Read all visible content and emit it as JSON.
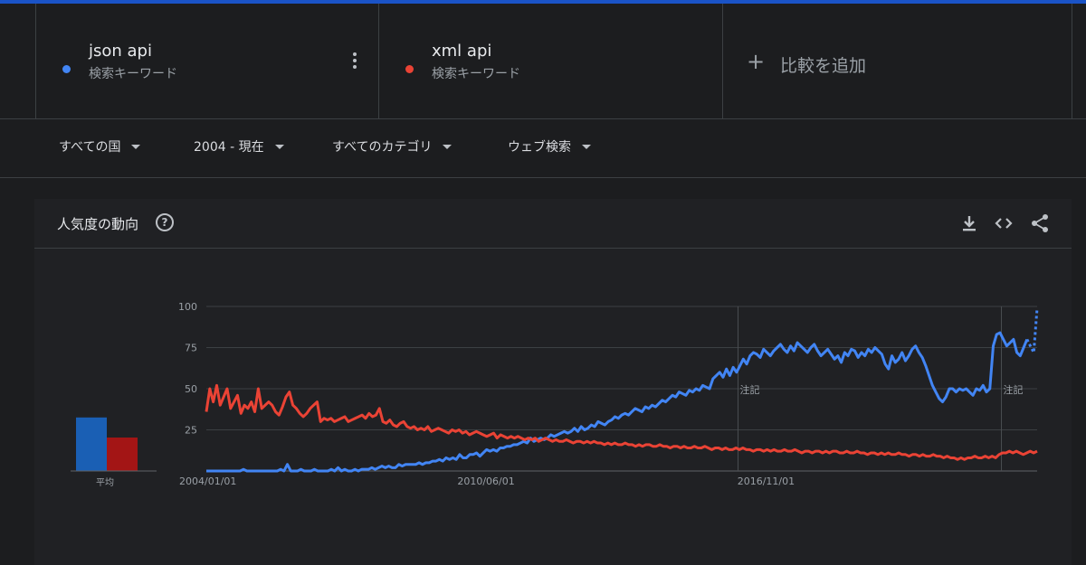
{
  "terms": [
    {
      "name": "json api",
      "type": "検索キーワード",
      "color": "#4285f4"
    },
    {
      "name": "xml api",
      "type": "検索キーワード",
      "color": "#ea4335"
    }
  ],
  "add_compare": "比較を追加",
  "filters": {
    "region": "すべての国",
    "period": "2004 - 現在",
    "category": "すべてのカテゴリ",
    "search_type": "ウェブ検索"
  },
  "panel": {
    "title": "人気度の動向",
    "icons": [
      "download-icon",
      "embed-icon",
      "share-icon"
    ],
    "avg_label": "平均"
  },
  "chart_data": {
    "type": "line",
    "x_tick_labels": [
      "2004/01/01",
      "2010/06/01",
      "2016/11/01"
    ],
    "y_ticks": [
      25,
      50,
      75,
      100
    ],
    "ylim": [
      0,
      100
    ],
    "annotations": [
      "注記",
      "注記"
    ],
    "series": [
      {
        "name": "json api",
        "color": "#4285f4",
        "values": [
          0,
          0,
          0,
          0,
          0,
          0,
          0,
          0,
          0,
          0,
          0,
          1,
          0,
          0,
          0,
          0,
          0,
          0,
          0,
          0,
          0,
          0,
          1,
          0,
          4,
          0,
          0,
          0,
          1,
          0,
          0,
          0,
          1,
          0,
          0,
          0,
          0,
          1,
          0,
          2,
          0,
          1,
          0,
          0,
          1,
          0,
          1,
          1,
          1,
          2,
          1,
          2,
          3,
          2,
          3,
          2,
          2,
          4,
          3,
          4,
          4,
          4,
          4,
          5,
          4,
          5,
          5,
          6,
          6,
          7,
          6,
          8,
          7,
          8,
          7,
          10,
          8,
          8,
          10,
          10,
          11,
          9,
          11,
          13,
          12,
          13,
          12,
          14,
          14,
          15,
          15,
          16,
          16,
          17,
          18,
          17,
          20,
          18,
          19,
          20,
          19,
          20,
          22,
          21,
          22,
          23,
          24,
          23,
          24,
          26,
          24,
          27,
          25,
          26,
          28,
          27,
          30,
          29,
          28,
          30,
          31,
          33,
          32,
          34,
          35,
          34,
          36,
          38,
          37,
          36,
          39,
          38,
          40,
          39,
          41,
          43,
          42,
          44,
          46,
          45,
          48,
          47,
          46,
          49,
          48,
          50,
          49,
          52,
          51,
          50,
          56,
          58,
          60,
          57,
          62,
          58,
          63,
          60,
          64,
          68,
          65,
          70,
          72,
          71,
          69,
          74,
          72,
          70,
          73,
          75,
          77,
          74,
          72,
          76,
          73,
          78,
          76,
          74,
          72,
          75,
          77,
          73,
          70,
          72,
          74,
          71,
          68,
          70,
          66,
          72,
          70,
          74,
          73,
          69,
          72,
          70,
          74,
          72,
          75,
          73,
          71,
          65,
          62,
          70,
          66,
          68,
          72,
          67,
          70,
          74,
          76,
          72,
          69,
          64,
          58,
          52,
          48,
          44,
          42,
          45,
          50,
          50,
          48,
          50,
          49,
          50,
          48,
          46,
          50,
          49,
          52,
          48,
          50,
          76,
          83,
          84,
          80,
          76,
          78,
          80,
          72,
          70,
          75,
          80,
          76,
          72,
          99
        ]
      },
      {
        "name": "xml api",
        "color": "#ea4335",
        "values": [
          36,
          50,
          42,
          52,
          40,
          45,
          50,
          38,
          42,
          46,
          35,
          40,
          38,
          42,
          36,
          50,
          38,
          40,
          42,
          40,
          36,
          34,
          39,
          45,
          48,
          40,
          38,
          35,
          33,
          35,
          38,
          40,
          42,
          30,
          32,
          31,
          32,
          30,
          31,
          32,
          33,
          30,
          31,
          32,
          33,
          34,
          32,
          35,
          33,
          34,
          38,
          30,
          29,
          31,
          28,
          27,
          29,
          30,
          27,
          26,
          27,
          25,
          26,
          25,
          27,
          24,
          25,
          26,
          25,
          24,
          23,
          25,
          24,
          25,
          23,
          24,
          22,
          23,
          24,
          23,
          22,
          21,
          22,
          23,
          20,
          22,
          21,
          20,
          21,
          20,
          21,
          20,
          19,
          20,
          19,
          20,
          18,
          19,
          20,
          19,
          18,
          19,
          18,
          18,
          19,
          18,
          17,
          18,
          18,
          17,
          18,
          17,
          18,
          17,
          17,
          16,
          17,
          16,
          17,
          16,
          16,
          17,
          16,
          16,
          15,
          16,
          15,
          16,
          16,
          15,
          15,
          16,
          15,
          15,
          14,
          15,
          15,
          14,
          15,
          14,
          14,
          15,
          14,
          14,
          15,
          14,
          13,
          14,
          14,
          13,
          14,
          13,
          13,
          14,
          13,
          14,
          13,
          13,
          12,
          13,
          13,
          12,
          13,
          12,
          13,
          12,
          12,
          13,
          12,
          12,
          13,
          12,
          11,
          12,
          12,
          11,
          12,
          12,
          11,
          12,
          11,
          12,
          12,
          11,
          11,
          12,
          11,
          11,
          12,
          11,
          11,
          10,
          11,
          11,
          10,
          11,
          10,
          11,
          10,
          10,
          11,
          10,
          10,
          9,
          10,
          10,
          9,
          10,
          9,
          9,
          10,
          9,
          9,
          8,
          9,
          8,
          8,
          7,
          8,
          7,
          8,
          8,
          9,
          8,
          8,
          9,
          8,
          9,
          8,
          10,
          11,
          11,
          12,
          11,
          12,
          11,
          10,
          11,
          12,
          11,
          12
        ]
      }
    ],
    "averages": [
      {
        "name": "json api",
        "value": 32
      },
      {
        "name": "xml api",
        "value": 20
      }
    ]
  }
}
